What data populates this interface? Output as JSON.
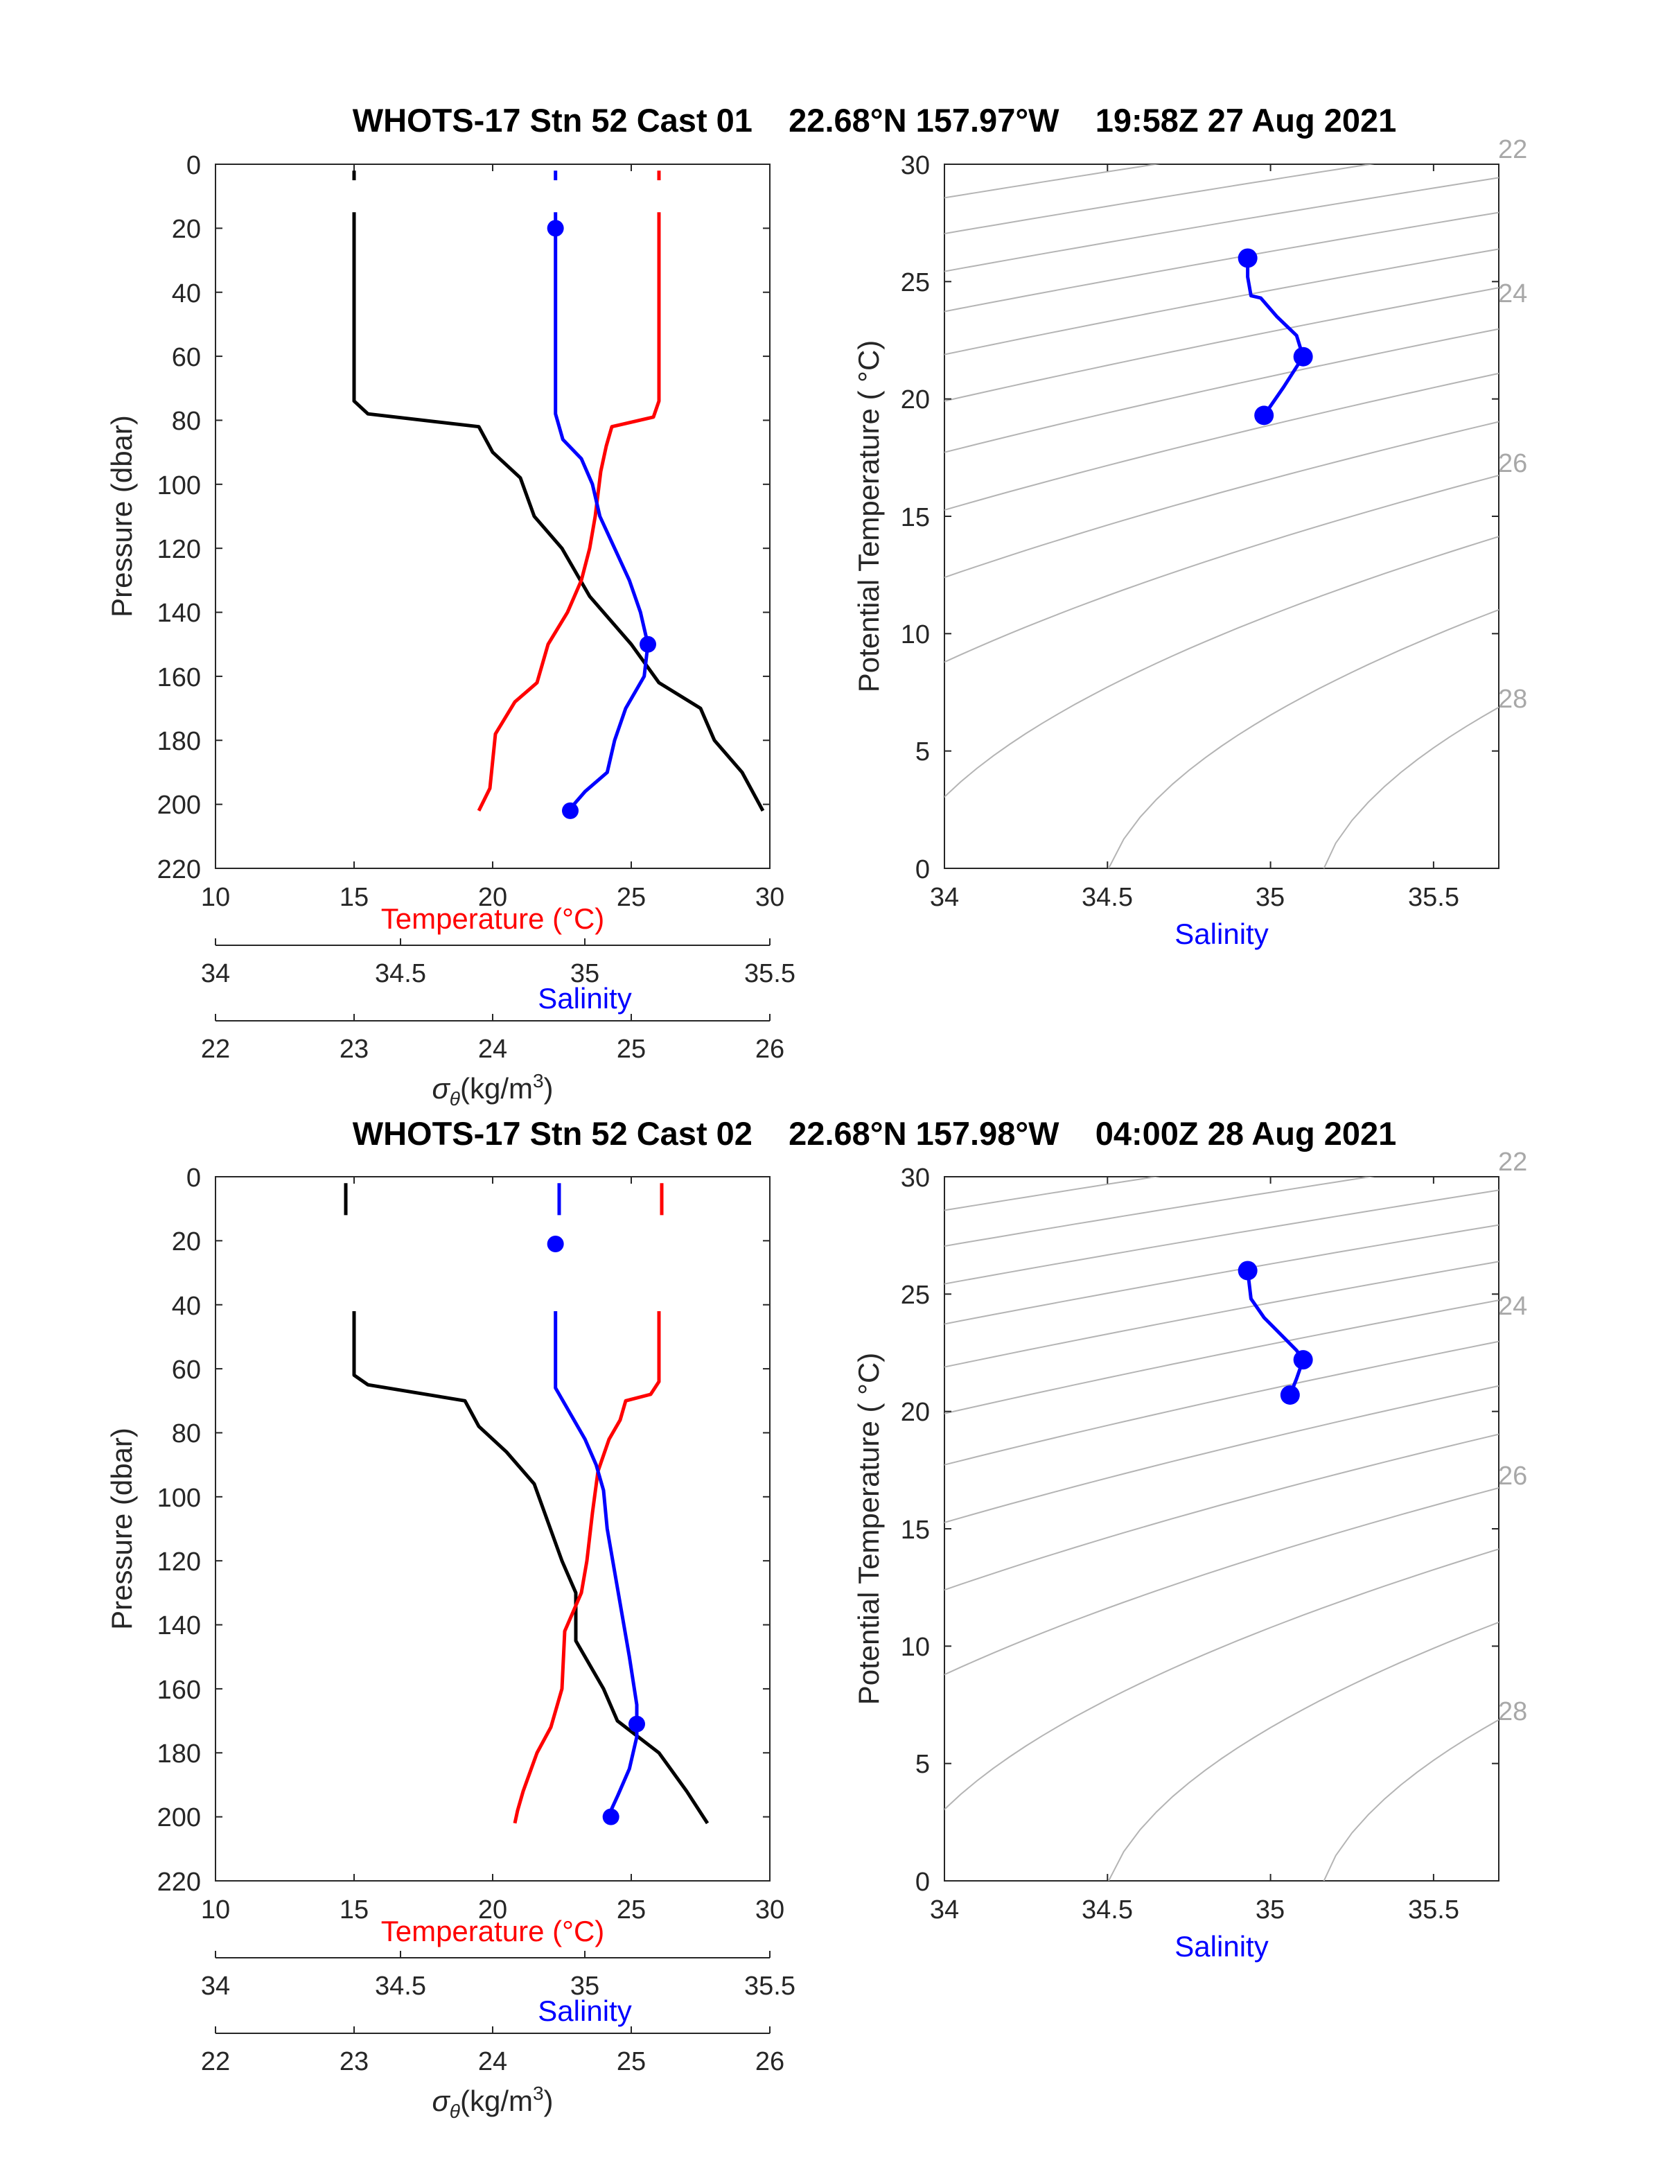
{
  "casts": [
    {
      "title": "WHOTS-17 Stn 52 Cast 01    22.68°N 157.97°W    19:58Z 27 Aug 2021",
      "profile": {
        "ylabel": "Pressure (dbar)",
        "ylim": [
          220,
          0
        ],
        "yticks": [
          "0",
          "20",
          "40",
          "60",
          "80",
          "100",
          "120",
          "140",
          "160",
          "180",
          "200",
          "220"
        ],
        "temperature_axis": {
          "label": "Temperature (°C)",
          "ticks": [
            "10",
            "15",
            "20",
            "25",
            "30"
          ],
          "lim": [
            10,
            30
          ],
          "color": "#ff0000"
        },
        "salinity_axis": {
          "label": "Salinity",
          "ticks": [
            "34",
            "34.5",
            "35",
            "35.5"
          ],
          "lim": [
            34,
            35.5
          ],
          "color": "#0000ff"
        },
        "density_axis": {
          "label": "σθ(kg/m3)",
          "ticks": [
            "22",
            "23",
            "24",
            "25",
            "26"
          ],
          "lim": [
            22,
            26
          ],
          "color": "#000000"
        }
      },
      "ts": {
        "xlabel": "Salinity",
        "ylabel": "Potential Temperature ( °C)",
        "xlim": [
          34,
          35.7
        ],
        "ylim": [
          0,
          30
        ],
        "xticks": [
          "34",
          "34.5",
          "35",
          "35.5"
        ],
        "yticks": [
          "0",
          "5",
          "10",
          "15",
          "20",
          "25",
          "30"
        ],
        "density_labels": [
          "22",
          "24",
          "26",
          "28"
        ]
      }
    },
    {
      "title": "WHOTS-17 Stn 52 Cast 02    22.68°N 157.98°W    04:00Z 28 Aug 2021",
      "profile": {
        "ylabel": "Pressure (dbar)",
        "ylim": [
          220,
          0
        ],
        "yticks": [
          "0",
          "20",
          "40",
          "60",
          "80",
          "100",
          "120",
          "140",
          "160",
          "180",
          "200",
          "220"
        ],
        "temperature_axis": {
          "label": "Temperature (°C)",
          "ticks": [
            "10",
            "15",
            "20",
            "25",
            "30"
          ],
          "lim": [
            10,
            30
          ],
          "color": "#ff0000"
        },
        "salinity_axis": {
          "label": "Salinity",
          "ticks": [
            "34",
            "34.5",
            "35",
            "35.5"
          ],
          "lim": [
            34,
            35.5
          ],
          "color": "#0000ff"
        },
        "density_axis": {
          "label": "σθ(kg/m3)",
          "ticks": [
            "22",
            "23",
            "24",
            "25",
            "26"
          ],
          "lim": [
            22,
            26
          ],
          "color": "#000000"
        }
      },
      "ts": {
        "xlabel": "Salinity",
        "ylabel": "Potential Temperature ( °C)",
        "xlim": [
          34,
          35.7
        ],
        "ylim": [
          0,
          30
        ],
        "xticks": [
          "34",
          "34.5",
          "35",
          "35.5"
        ],
        "yticks": [
          "0",
          "5",
          "10",
          "15",
          "20",
          "25",
          "30"
        ],
        "density_labels": [
          "22",
          "24",
          "26",
          "28"
        ]
      }
    }
  ],
  "chart_data": [
    {
      "type": "line",
      "panel": "Cast 01 profile",
      "series": [
        {
          "name": "Temperature (°C)",
          "color": "#ff0000",
          "segments": [
            [
              [
                26.0,
                2
              ],
              [
                26.0,
                5
              ]
            ],
            [
              [
                26.0,
                15
              ],
              [
                26.0,
                74
              ],
              [
                25.8,
                79
              ],
              [
                24.3,
                82
              ],
              [
                24.1,
                88
              ],
              [
                23.9,
                96
              ],
              [
                23.7,
                110
              ],
              [
                23.5,
                120
              ],
              [
                23.2,
                130
              ],
              [
                22.7,
                140
              ],
              [
                22.0,
                150
              ],
              [
                21.6,
                162
              ],
              [
                20.8,
                168
              ],
              [
                20.1,
                178
              ],
              [
                19.9,
                195
              ],
              [
                19.5,
                202
              ]
            ]
          ]
        },
        {
          "name": "Salinity",
          "color": "#0000ff",
          "segments": [
            [
              [
                34.92,
                2
              ],
              [
                34.92,
                5
              ]
            ],
            [
              [
                34.92,
                15
              ],
              [
                34.92,
                78
              ],
              [
                34.94,
                86
              ],
              [
                34.99,
                92
              ],
              [
                35.02,
                100
              ],
              [
                35.04,
                110
              ],
              [
                35.08,
                120
              ],
              [
                35.12,
                130
              ],
              [
                35.15,
                140
              ],
              [
                35.17,
                150
              ],
              [
                35.16,
                160
              ],
              [
                35.11,
                170
              ],
              [
                35.08,
                180
              ],
              [
                35.06,
                190
              ],
              [
                35.0,
                196
              ],
              [
                34.97,
                200
              ]
            ]
          ]
        },
        {
          "name": "σθ",
          "color": "#000000",
          "segments": [
            [
              [
                23.0,
                2
              ],
              [
                23.0,
                5
              ]
            ],
            [
              [
                23.0,
                15
              ],
              [
                23.0,
                74
              ],
              [
                23.1,
                78
              ],
              [
                23.9,
                82
              ],
              [
                24.0,
                90
              ],
              [
                24.2,
                98
              ],
              [
                24.3,
                110
              ],
              [
                24.5,
                120
              ],
              [
                24.7,
                135
              ],
              [
                25.0,
                150
              ],
              [
                25.2,
                162
              ],
              [
                25.5,
                170
              ],
              [
                25.6,
                180
              ],
              [
                25.8,
                190
              ],
              [
                25.95,
                202
              ]
            ]
          ]
        }
      ],
      "markers": [
        {
          "series": "Salinity",
          "points": [
            [
              34.92,
              20
            ],
            [
              35.17,
              150
            ],
            [
              34.96,
              202
            ]
          ]
        }
      ]
    },
    {
      "type": "scatter",
      "panel": "Cast 01 T-S",
      "series": [
        {
          "name": "Salinity vs Potential Temperature",
          "color": "#0000ff",
          "points": [
            [
              34.93,
              26.0
            ],
            [
              34.93,
              25.2
            ],
            [
              34.94,
              24.4
            ],
            [
              34.97,
              24.3
            ],
            [
              35.02,
              23.5
            ],
            [
              35.08,
              22.7
            ],
            [
              35.1,
              21.8
            ],
            [
              35.04,
              20.5
            ],
            [
              34.98,
              19.3
            ]
          ]
        }
      ],
      "markers": [
        [
          34.93,
          26.0
        ],
        [
          35.1,
          21.8
        ],
        [
          34.98,
          19.3
        ]
      ]
    },
    {
      "type": "line",
      "panel": "Cast 02 profile",
      "series": [
        {
          "name": "Temperature (°C)",
          "color": "#ff0000",
          "segments": [
            [
              [
                26.1,
                2
              ],
              [
                26.1,
                12
              ]
            ],
            [
              [
                26.0,
                42
              ],
              [
                26.0,
                64
              ],
              [
                25.7,
                68
              ],
              [
                24.8,
                70
              ],
              [
                24.6,
                76
              ],
              [
                24.2,
                82
              ],
              [
                23.8,
                92
              ],
              [
                23.6,
                105
              ],
              [
                23.4,
                120
              ],
              [
                23.2,
                130
              ],
              [
                22.6,
                142
              ],
              [
                22.5,
                160
              ],
              [
                22.1,
                172
              ],
              [
                21.6,
                180
              ],
              [
                21.1,
                192
              ],
              [
                20.9,
                198
              ],
              [
                20.8,
                202
              ]
            ]
          ]
        },
        {
          "name": "Salinity",
          "color": "#0000ff",
          "segments": [
            [
              [
                34.93,
                2
              ],
              [
                34.93,
                12
              ]
            ],
            [
              [
                34.92,
                42
              ],
              [
                34.92,
                66
              ],
              [
                34.96,
                74
              ],
              [
                35.0,
                82
              ],
              [
                35.03,
                90
              ],
              [
                35.05,
                98
              ],
              [
                35.06,
                110
              ],
              [
                35.09,
                130
              ],
              [
                35.12,
                150
              ],
              [
                35.14,
                165
              ],
              [
                35.14,
                175
              ],
              [
                35.12,
                185
              ],
              [
                35.09,
                193
              ],
              [
                35.07,
                198
              ]
            ]
          ]
        },
        {
          "name": "σθ",
          "color": "#000000",
          "segments": [
            [
              [
                22.94,
                2
              ],
              [
                22.94,
                12
              ]
            ],
            [
              [
                23.0,
                42
              ],
              [
                23.0,
                62
              ],
              [
                23.1,
                65
              ],
              [
                23.8,
                70
              ],
              [
                23.9,
                78
              ],
              [
                24.1,
                86
              ],
              [
                24.3,
                96
              ],
              [
                24.4,
                108
              ],
              [
                24.5,
                120
              ],
              [
                24.6,
                130
              ],
              [
                24.6,
                145
              ],
              [
                24.8,
                160
              ],
              [
                24.9,
                170
              ],
              [
                25.2,
                180
              ],
              [
                25.4,
                192
              ],
              [
                25.55,
                202
              ]
            ]
          ]
        }
      ],
      "markers": [
        {
          "series": "Salinity",
          "points": [
            [
              34.92,
              21
            ],
            [
              35.14,
              171
            ],
            [
              35.07,
              200
            ]
          ]
        }
      ]
    },
    {
      "type": "scatter",
      "panel": "Cast 02 T-S",
      "series": [
        {
          "name": "Salinity vs Potential Temperature",
          "color": "#0000ff",
          "points": [
            [
              34.93,
              26.0
            ],
            [
              34.94,
              24.8
            ],
            [
              34.98,
              24.0
            ],
            [
              35.03,
              23.3
            ],
            [
              35.08,
              22.6
            ],
            [
              35.1,
              22.2
            ],
            [
              35.08,
              21.4
            ],
            [
              35.06,
              20.7
            ]
          ]
        }
      ],
      "markers": [
        [
          34.93,
          26.0
        ],
        [
          35.1,
          22.2
        ],
        [
          35.06,
          20.7
        ]
      ]
    }
  ]
}
